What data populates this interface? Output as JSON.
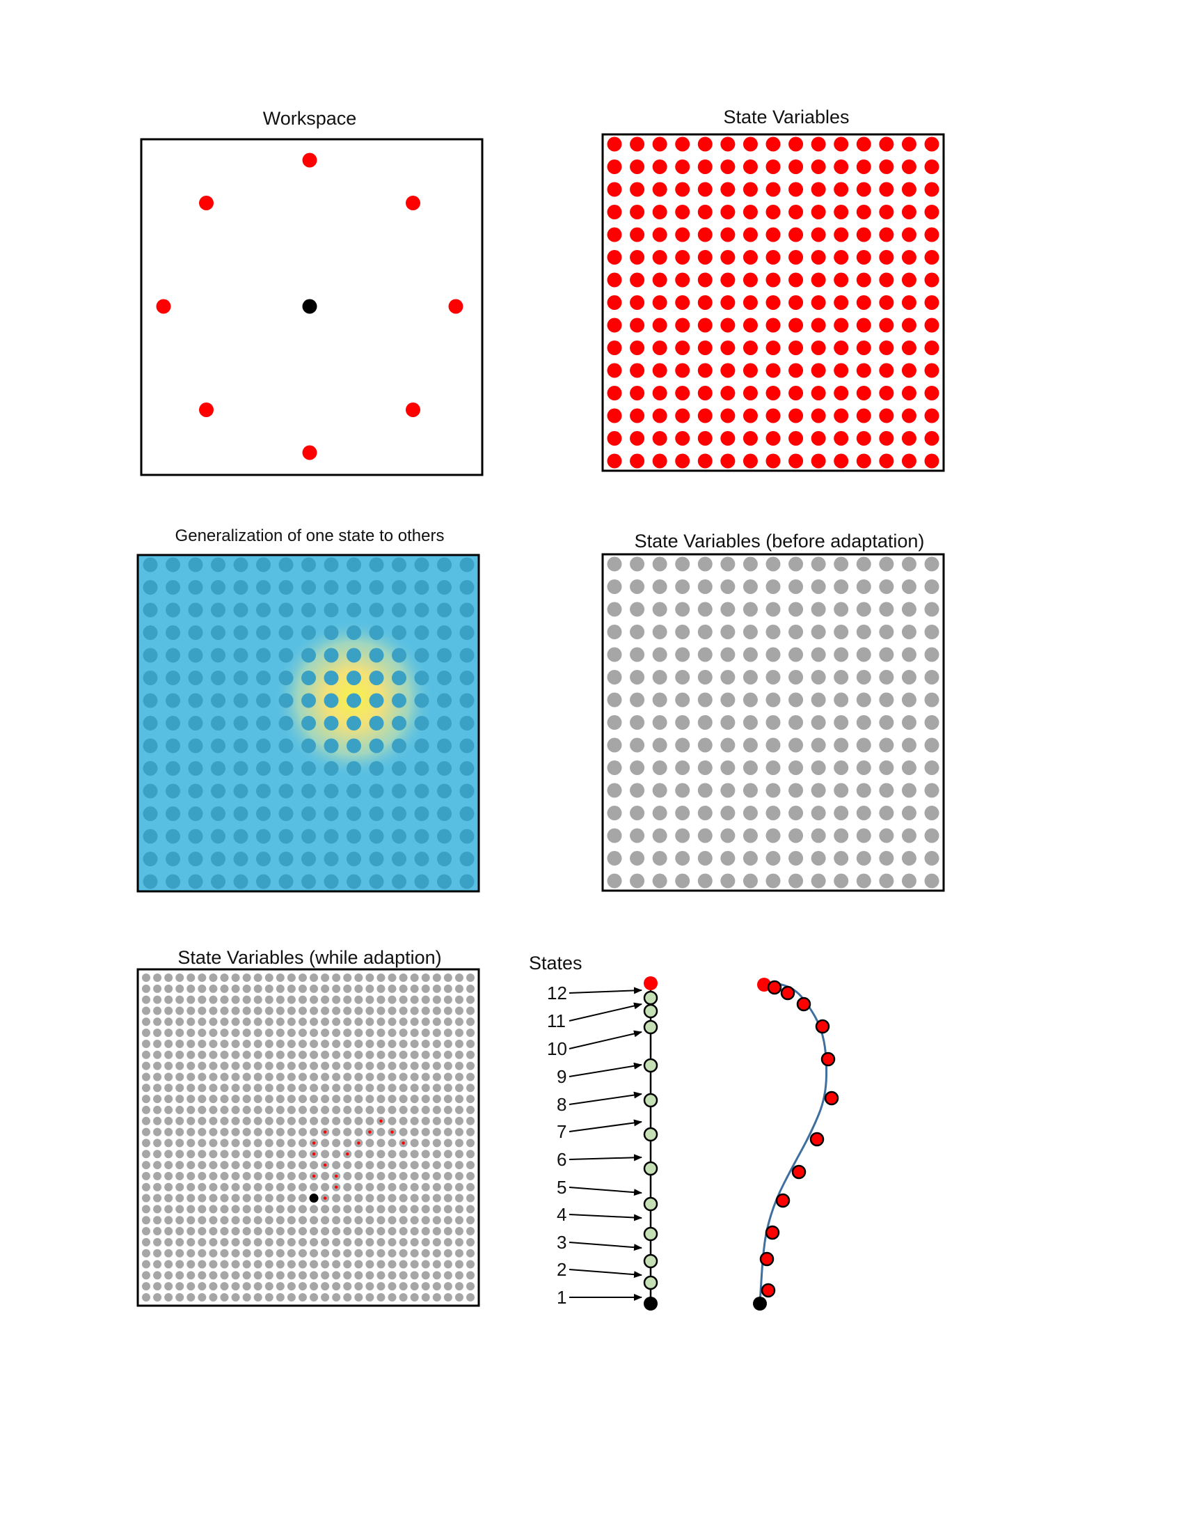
{
  "titles": {
    "workspace": "Workspace",
    "state_variables": "State Variables",
    "generalization": "Generalization of one state to others",
    "before_adaptation": "State Variables (before adaptation)",
    "while_adaption": "State Variables (while adaption)",
    "states": "States"
  },
  "colors": {
    "target": "#ff0000",
    "center": "#000000",
    "grid_gray": "#a6a6a6",
    "heatmap_bg": "#58bfe3",
    "heatmap_dot": "#3aa0c4",
    "heatmap_peak": "#f6f24a",
    "state_green": "#c5e0b4",
    "curve": "#3f6f9f"
  },
  "workspace": {
    "targets": 8,
    "center": 1
  },
  "state_grid": {
    "rows": 15,
    "cols": 15
  },
  "adaptation_grid": {
    "rows": 30,
    "cols": 30
  },
  "state_labels": [
    "1",
    "2",
    "3",
    "4",
    "5",
    "6",
    "7",
    "8",
    "9",
    "10",
    "11",
    "12"
  ]
}
